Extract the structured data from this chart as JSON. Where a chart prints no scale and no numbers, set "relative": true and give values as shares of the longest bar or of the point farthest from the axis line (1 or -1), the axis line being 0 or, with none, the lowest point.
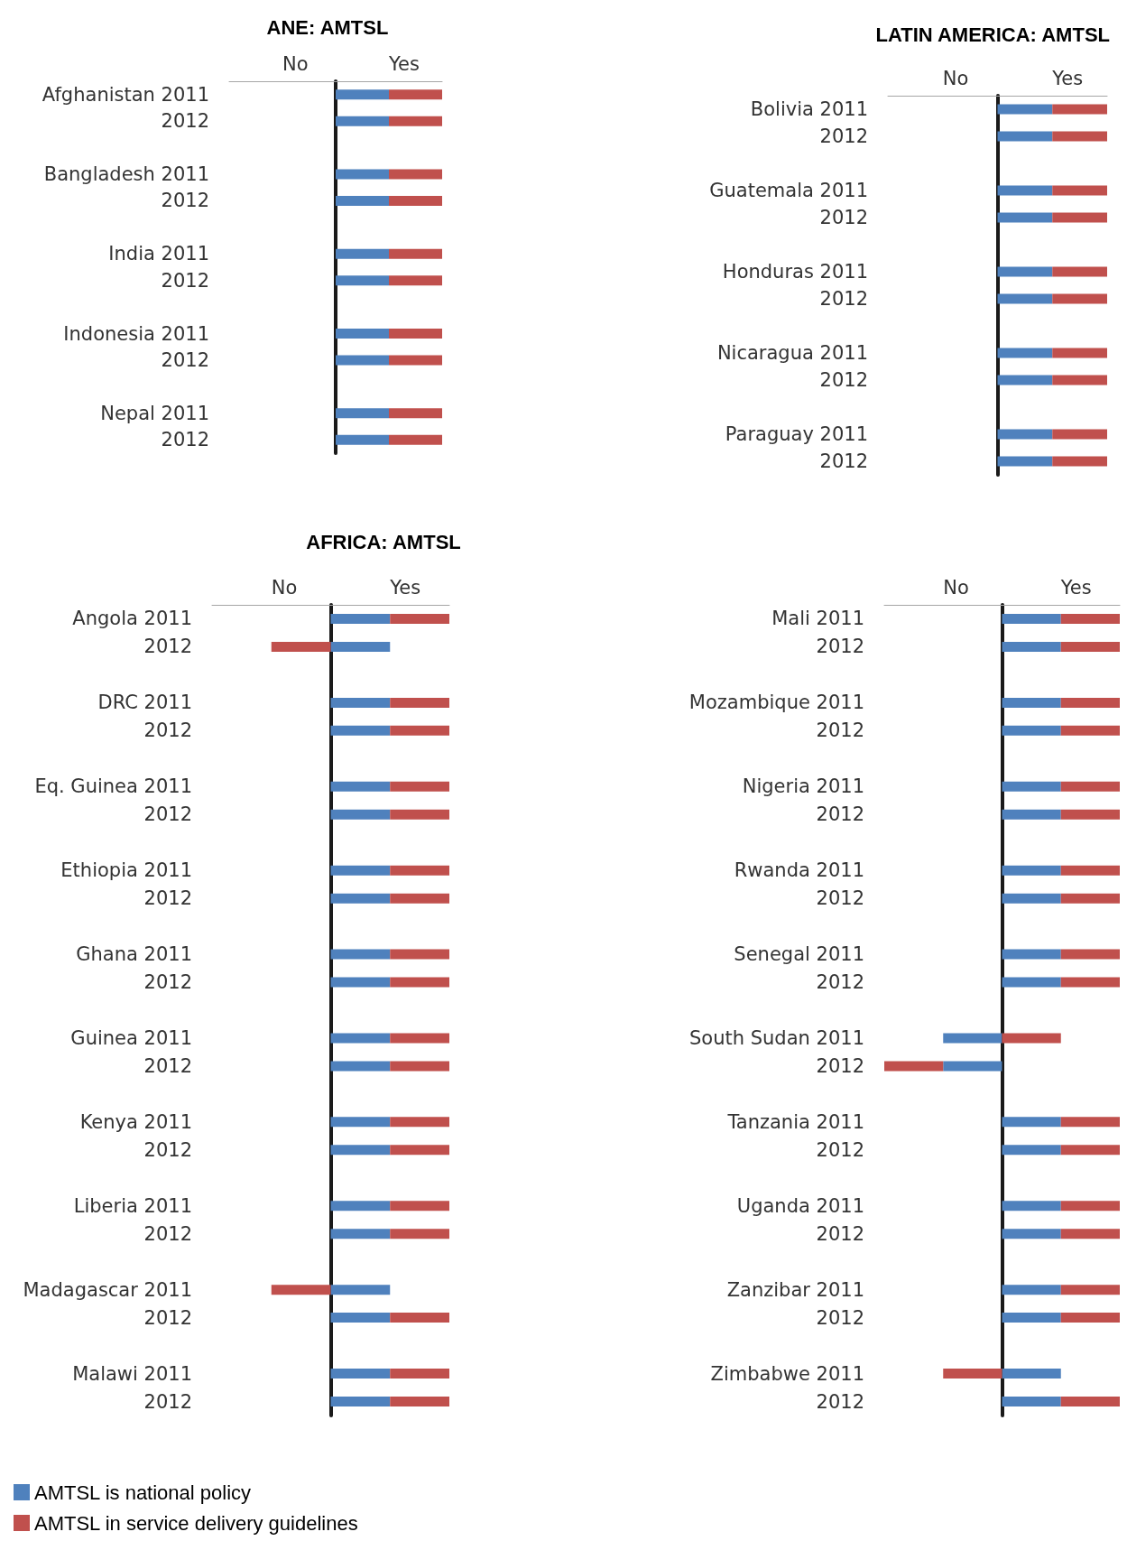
{
  "chart_data": [
    {
      "type": "bar",
      "orientation": "horizontal",
      "stacked": true,
      "relative": true,
      "title": "ANE: AMTSL",
      "annotations": [
        "No",
        "Yes"
      ],
      "categories": [
        "Afghanistan 2011",
        "2012",
        null,
        "Bangladesh 2011",
        "2012",
        null,
        "India 2011",
        "2012",
        null,
        "Indonesia 2011",
        "2012",
        null,
        "Nepal 2011",
        "2012"
      ],
      "series": [
        {
          "color": "#4f81bd",
          "values": [
            0.5,
            0.5,
            null,
            0.5,
            0.5,
            null,
            0.5,
            0.5,
            null,
            0.5,
            0.5,
            null,
            0.5,
            0.5
          ]
        },
        {
          "color": "#c0504d",
          "values": [
            0.5,
            0.5,
            null,
            0.5,
            0.5,
            null,
            0.5,
            0.5,
            null,
            0.5,
            0.5,
            null,
            0.5,
            0.5
          ]
        }
      ]
    },
    {
      "type": "bar",
      "orientation": "horizontal",
      "stacked": true,
      "relative": true,
      "title": "LATIN AMERICA: AMTSL",
      "annotations": [
        "No",
        "Yes"
      ],
      "categories": [
        "Bolivia 2011",
        "2012",
        null,
        "Guatemala 2011",
        "2012",
        null,
        "Honduras 2011",
        "2012",
        null,
        "Nicaragua 2011",
        "2012",
        null,
        "Paraguay 2011",
        "2012"
      ],
      "series": [
        {
          "color": "#4f81bd",
          "values": [
            0.5,
            0.5,
            null,
            0.5,
            0.5,
            null,
            0.5,
            0.5,
            null,
            0.5,
            0.5,
            null,
            0.5,
            0.5
          ]
        },
        {
          "color": "#c0504d",
          "values": [
            0.5,
            0.5,
            null,
            0.5,
            0.5,
            null,
            0.5,
            0.5,
            null,
            0.5,
            0.5,
            null,
            0.5,
            0.5
          ]
        }
      ]
    },
    {
      "type": "bar",
      "orientation": "horizontal",
      "stacked": true,
      "relative": true,
      "title": "AFRICA: AMTSL",
      "annotations": [
        "No",
        "Yes"
      ],
      "legend": "bottom left",
      "categories": [
        "Angola 2011",
        "2012",
        null,
        "DRC 2011",
        "2012",
        null,
        "Eq. Guinea 2011",
        "2012",
        null,
        "Ethiopia 2011",
        "2012",
        null,
        "Ghana 2011",
        "2012",
        null,
        "Guinea 2011",
        "2012",
        null,
        "Kenya 2011",
        "2012",
        null,
        "Liberia 2011",
        "2012",
        null,
        "Madagascar 2011",
        "2012",
        null,
        "Malawi 2011",
        "2012"
      ],
      "series": [
        {
          "name": "AMTSL is national policy",
          "color": "#4f81bd",
          "values": [
            0.5,
            0.5,
            null,
            0.5,
            0.5,
            null,
            0.5,
            0.5,
            null,
            0.5,
            0.5,
            null,
            0.5,
            0.5,
            null,
            0.5,
            0.5,
            null,
            0.5,
            0.5,
            null,
            0.5,
            0.5,
            null,
            0.5,
            0.5,
            null,
            0.5,
            0.5
          ]
        },
        {
          "name": "AMTSL in service delivery guidelines",
          "color": "#c0504d",
          "values": [
            0.5,
            -0.5,
            null,
            0.5,
            0.5,
            null,
            0.5,
            0.5,
            null,
            0.5,
            0.5,
            null,
            0.5,
            0.5,
            null,
            0.5,
            0.5,
            null,
            0.5,
            0.5,
            null,
            0.5,
            0.5,
            null,
            -0.5,
            0.5,
            null,
            0.5,
            0.5
          ]
        }
      ]
    },
    {
      "type": "bar",
      "orientation": "horizontal",
      "stacked": true,
      "relative": true,
      "annotations": [
        "No",
        "Yes"
      ],
      "categories": [
        "Mali 2011",
        "2012",
        null,
        "Mozambique 2011",
        "2012",
        null,
        "Nigeria 2011",
        "2012",
        null,
        "Rwanda 2011",
        "2012",
        null,
        "Senegal 2011",
        "2012",
        null,
        "South Sudan 2011",
        "2012",
        null,
        "Tanzania 2011",
        "2012",
        null,
        "Uganda 2011",
        "2012",
        null,
        "Zanzibar 2011",
        "2012",
        null,
        "Zimbabwe 2011",
        "2012"
      ],
      "series": [
        {
          "color": "#4f81bd",
          "values": [
            0.5,
            0.5,
            null,
            0.5,
            0.5,
            null,
            0.5,
            0.5,
            null,
            0.5,
            0.5,
            null,
            0.5,
            0.5,
            null,
            -0.5,
            -0.5,
            null,
            0.5,
            0.5,
            null,
            0.5,
            0.5,
            null,
            0.5,
            0.5,
            null,
            0.5,
            0.5
          ]
        },
        {
          "color": "#c0504d",
          "values": [
            0.5,
            0.5,
            null,
            0.5,
            0.5,
            null,
            0.5,
            0.5,
            null,
            0.5,
            0.5,
            null,
            0.5,
            0.5,
            null,
            0.5,
            -0.5,
            null,
            0.5,
            0.5,
            null,
            0.5,
            0.5,
            null,
            0.5,
            0.5,
            null,
            -0.5,
            0.5
          ]
        }
      ]
    }
  ]
}
